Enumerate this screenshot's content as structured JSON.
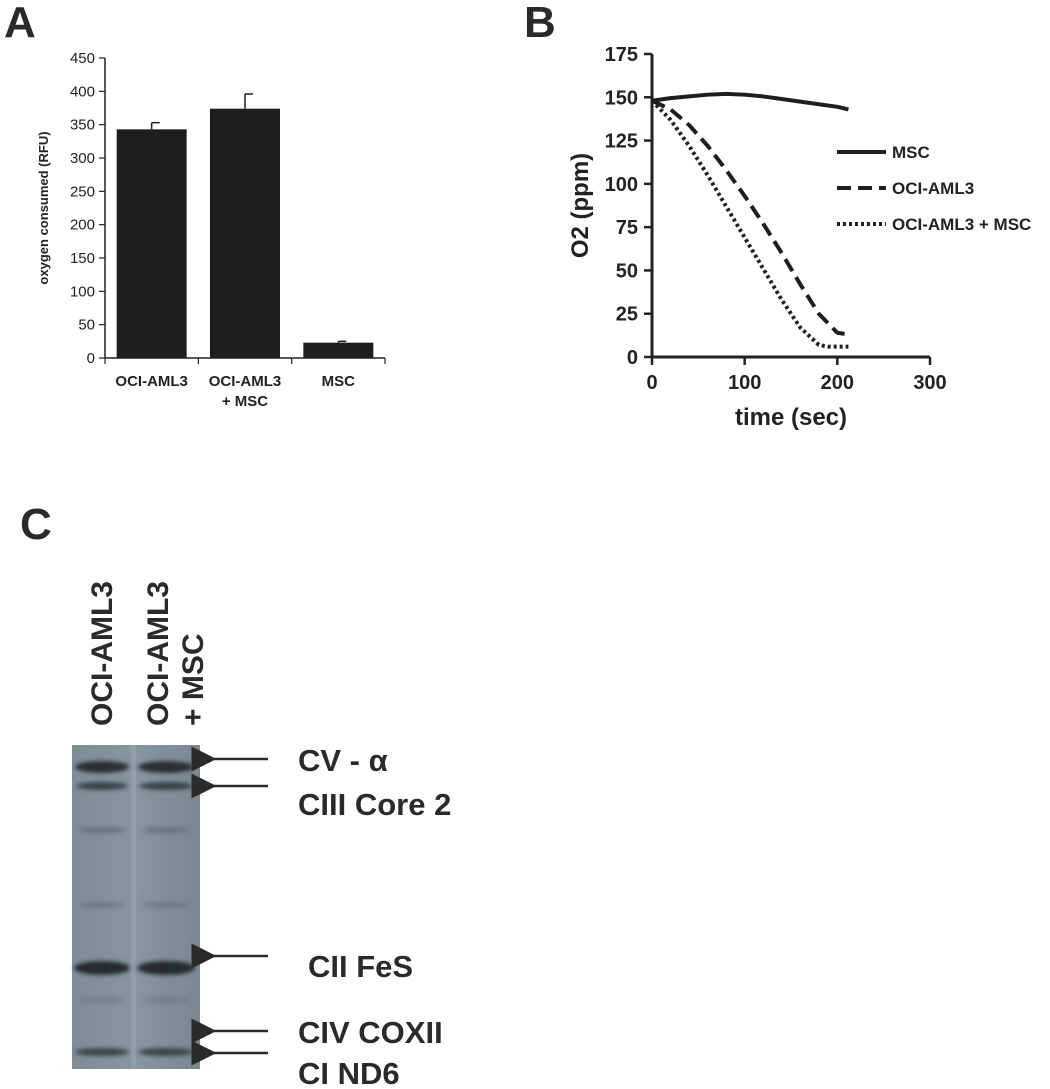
{
  "panels": {
    "a": "A",
    "b": "B",
    "c": "C"
  },
  "chart_data": [
    {
      "type": "bar",
      "ylabel": "oxygen consumed (RFU)",
      "ylim": [
        0,
        450
      ],
      "yticks": [
        0,
        50,
        100,
        150,
        200,
        250,
        300,
        350,
        400,
        450
      ],
      "categories": [
        [
          "OCI-AML3"
        ],
        [
          "OCI-AML3",
          "+ MSC"
        ],
        [
          "MSC"
        ]
      ],
      "values": [
        343,
        374,
        23
      ],
      "errors": [
        10,
        22,
        2
      ],
      "color": "#1e1e1e"
    },
    {
      "type": "line",
      "xlabel": "time (sec)",
      "ylabel": "O2 (ppm)",
      "xlim": [
        0,
        300
      ],
      "ylim": [
        0,
        175
      ],
      "xticks": [
        0,
        100,
        200,
        300
      ],
      "yticks": [
        0,
        25,
        50,
        75,
        100,
        125,
        150,
        175
      ],
      "legend_position": "right",
      "color": "#1e1e1e",
      "series": [
        {
          "name": "MSC",
          "style": "solid",
          "x": [
            0,
            20,
            40,
            60,
            80,
            100,
            120,
            140,
            160,
            180,
            200,
            212
          ],
          "y": [
            148,
            149.5,
            150.5,
            151.5,
            152,
            151.5,
            150.5,
            149,
            147.5,
            146,
            144.5,
            143
          ]
        },
        {
          "name": "OCI-AML3",
          "style": "dashed",
          "x": [
            0,
            20,
            40,
            60,
            80,
            100,
            120,
            140,
            160,
            180,
            200,
            212
          ],
          "y": [
            148,
            143,
            134,
            122,
            108,
            93,
            77,
            60,
            42,
            25,
            14,
            13
          ]
        },
        {
          "name": "OCI-AML3 + MSC",
          "style": "dotted",
          "x": [
            0,
            20,
            40,
            60,
            80,
            100,
            120,
            140,
            160,
            180,
            190,
            200,
            212
          ],
          "y": [
            148,
            137,
            122,
            105,
            87,
            69,
            51,
            33,
            17,
            7,
            6,
            6,
            6
          ]
        }
      ]
    }
  ],
  "blot": {
    "lanes": [
      [
        "OCI-AML3"
      ],
      [
        "OCI-AML3",
        "+ MSC"
      ]
    ],
    "bands": [
      "CV - α",
      "CIII Core 2",
      "CII FeS",
      "CIV COXII",
      "CI ND6"
    ]
  }
}
